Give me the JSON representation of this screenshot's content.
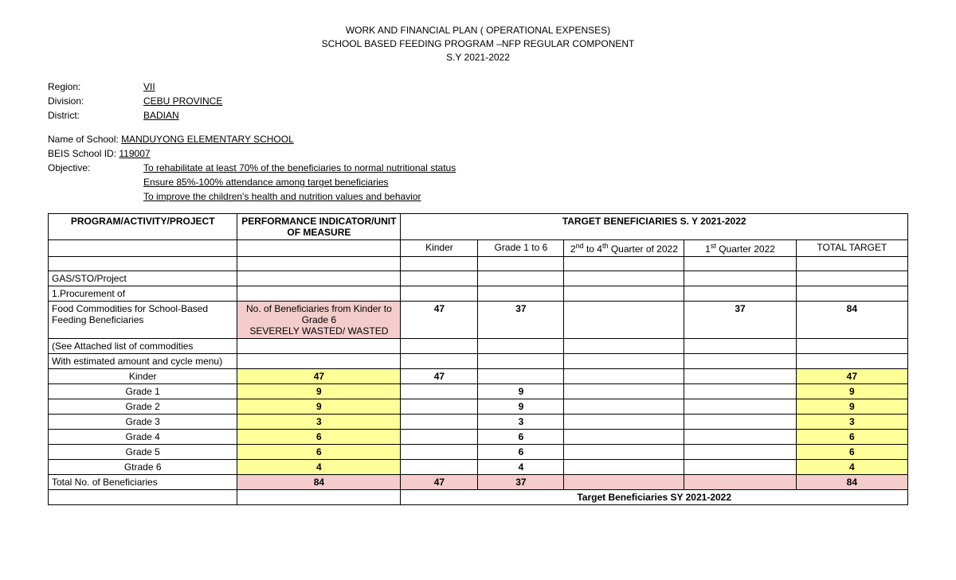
{
  "title": {
    "line1": "WORK AND FINANCIAL PLAN ( OPERATIONAL EXPENSES)",
    "line2": "SCHOOL BASED FEEDING PROGRAM –NFP REGULAR COMPONENT",
    "line3": "S.Y 2021-2022"
  },
  "meta": {
    "region_label": "Region:",
    "region": "VII",
    "division_label": "Division:",
    "division": "CEBU PROVINCE",
    "district_label": "District:",
    "district": "BADIAN",
    "school_label": "Name of School:",
    "school": "MANDUYONG ELEMENTARY SCHOOL",
    "beis_label": "BEIS School ID:",
    "beis": "119007",
    "objective_label": "Objective:",
    "objective1": "To rehabilitate at least 70% of the beneficiaries to normal nutritional status",
    "objective2": "Ensure 85%-100% attendance among target beneficiaries",
    "objective3": "To improve the children's health and nutrition values and behavior"
  },
  "table": {
    "headers": {
      "col1": "PROGRAM/ACTIVITY/PROJECT",
      "col2": "PERFORMANCE INDICATOR/UNIT OF MEASURE",
      "col_target": "TARGET BENEFICIARIES S. Y 2021-2022",
      "sub_kinder": "Kinder",
      "sub_g16": "Grade 1 to 6",
      "sub_q24_plain": "2",
      "sub_q24_sup": "nd",
      "sub_q24_mid": " to 4",
      "sub_q24_sup2": "th",
      "sub_q24_tail": " Quarter of 2022",
      "sub_q1_plain": "1",
      "sub_q1_sup": "st",
      "sub_q1_tail": " Quarter 2022",
      "sub_total": "TOTAL TARGET"
    },
    "rows": {
      "gas": "GAS/STO/Project",
      "proc": "1.Procurement of",
      "food_label": "Food Commodities for School-Based Feeding Beneficiaries",
      "food_ind_l1": "No. of Beneficiaries from Kinder to Grade 6",
      "food_ind_l2": "SEVERELY WASTED/ WASTED",
      "food_kinder": "47",
      "food_g16": "37",
      "food_q1": "37",
      "food_total": "84",
      "see1": "(See Attached list of commodities",
      "see2": "With estimated amount and cycle menu)",
      "grades": [
        {
          "name": "Kinder",
          "ind": "47",
          "k": "47",
          "g": "",
          "tot": "47"
        },
        {
          "name": "Grade 1",
          "ind": "9",
          "k": "",
          "g": "9",
          "tot": "9"
        },
        {
          "name": "Grade 2",
          "ind": "9",
          "k": "",
          "g": "9",
          "tot": "9"
        },
        {
          "name": "Grade 3",
          "ind": "3",
          "k": "",
          "g": "3",
          "tot": "3"
        },
        {
          "name": "Grade 4",
          "ind": "6",
          "k": "",
          "g": "6",
          "tot": "6"
        },
        {
          "name": "Grade 5",
          "ind": "6",
          "k": "",
          "g": "6",
          "tot": "6"
        },
        {
          "name": "Gtrade 6",
          "ind": "4",
          "k": "",
          "g": "4",
          "tot": "4"
        }
      ],
      "total_label": "Total No. of Beneficiaries",
      "total_ind": "84",
      "total_k": "47",
      "total_g": "37",
      "total_tot": "84",
      "footer": "Target Beneficiaries SY 2021-2022"
    },
    "colors": {
      "yellow": "#ffff99",
      "orange": "#f4cccc"
    }
  }
}
